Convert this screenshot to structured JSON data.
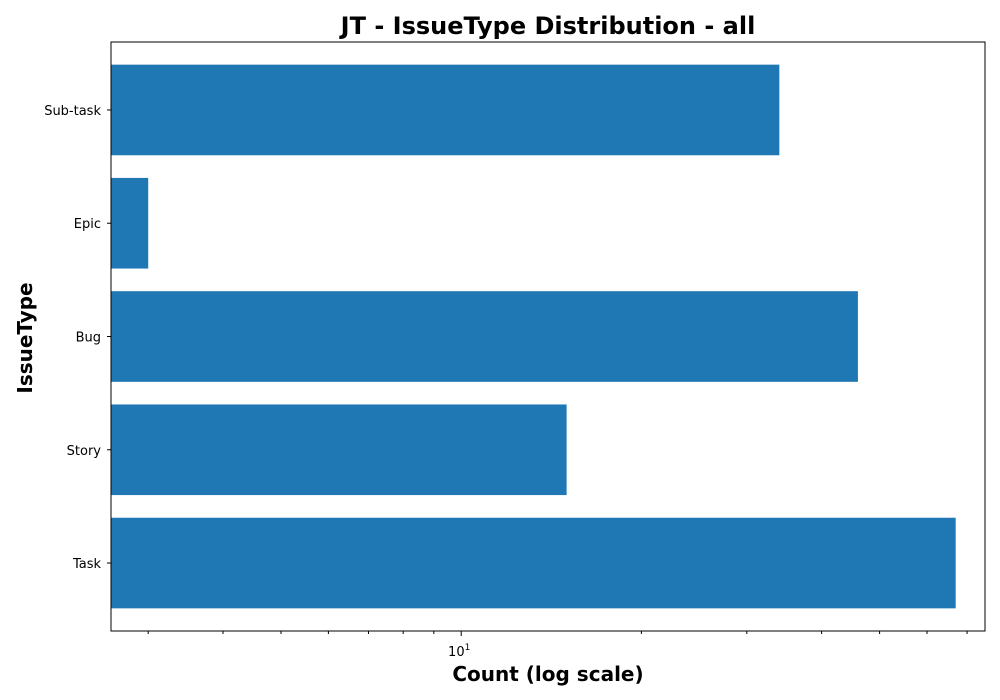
{
  "chart_data": {
    "type": "bar",
    "orientation": "horizontal",
    "title": "JT - IssueType Distribution - all",
    "xlabel": "Count (log scale)",
    "ylabel": "IssueType",
    "x_scale": "log",
    "xlim": [
      2.6,
      75
    ],
    "categories": [
      "Task",
      "Story",
      "Bug",
      "Epic",
      "Sub-task"
    ],
    "values": [
      67,
      15,
      46,
      3,
      34
    ],
    "major_ticks": [
      {
        "base": "10",
        "exp": "1",
        "value": 10
      }
    ],
    "minor_ticks": [
      3,
      4,
      5,
      6,
      7,
      8,
      9,
      20,
      30,
      40,
      50,
      60,
      70
    ],
    "grid": false,
    "legend": "none",
    "bar_color": "#1f77b4"
  }
}
